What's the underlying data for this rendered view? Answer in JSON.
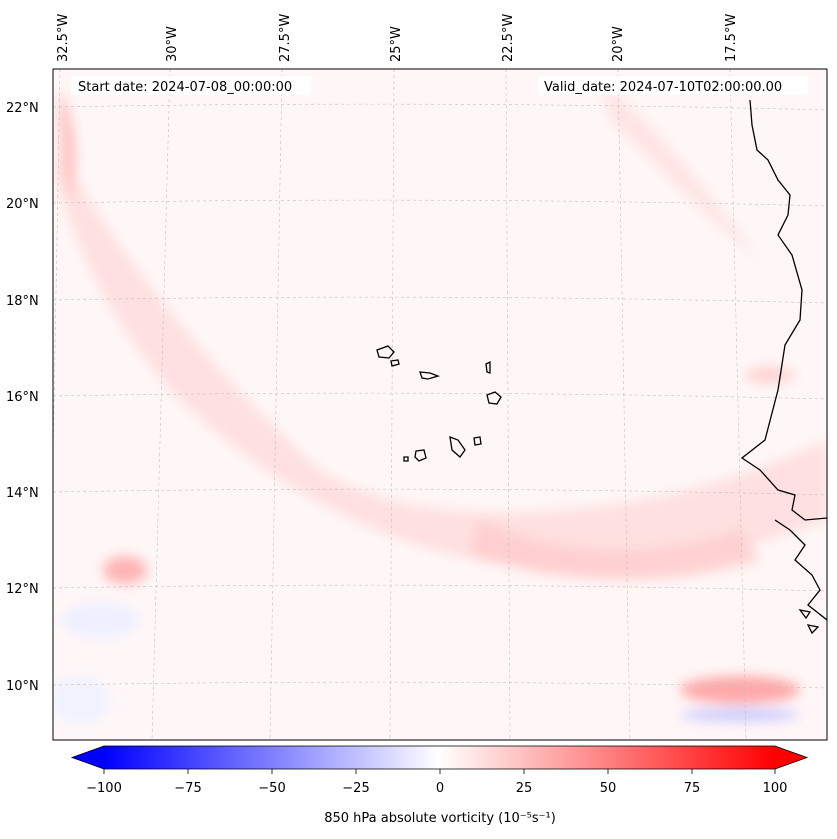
{
  "map": {
    "start_date_label": "Start date: 2024-07-08_00:00:00",
    "valid_date_label": "Valid_date: 2024-07-10T02:00:00.00",
    "variable": "850 hPa absolute vorticity",
    "units_label": "850 hPa absolute vorticity (10⁻⁵s⁻¹)",
    "lon_labels": [
      "32.5°W",
      "30°W",
      "27.5°W",
      "25°W",
      "22.5°W",
      "20°W",
      "17.5°W"
    ],
    "lat_labels": [
      "22°N",
      "20°N",
      "18°N",
      "16°N",
      "14°N",
      "12°N",
      "10°N"
    ],
    "colorbar": {
      "min": -100,
      "max": 100,
      "ticks": [
        "−100",
        "−75",
        "−50",
        "−25",
        "0",
        "25",
        "50",
        "75",
        "100"
      ],
      "cmap": "bwr",
      "extend": "both"
    },
    "colors": {
      "negative": "#0000ff",
      "neutral": "#ffffff",
      "positive": "#ff0000",
      "coastline": "#000000"
    }
  }
}
